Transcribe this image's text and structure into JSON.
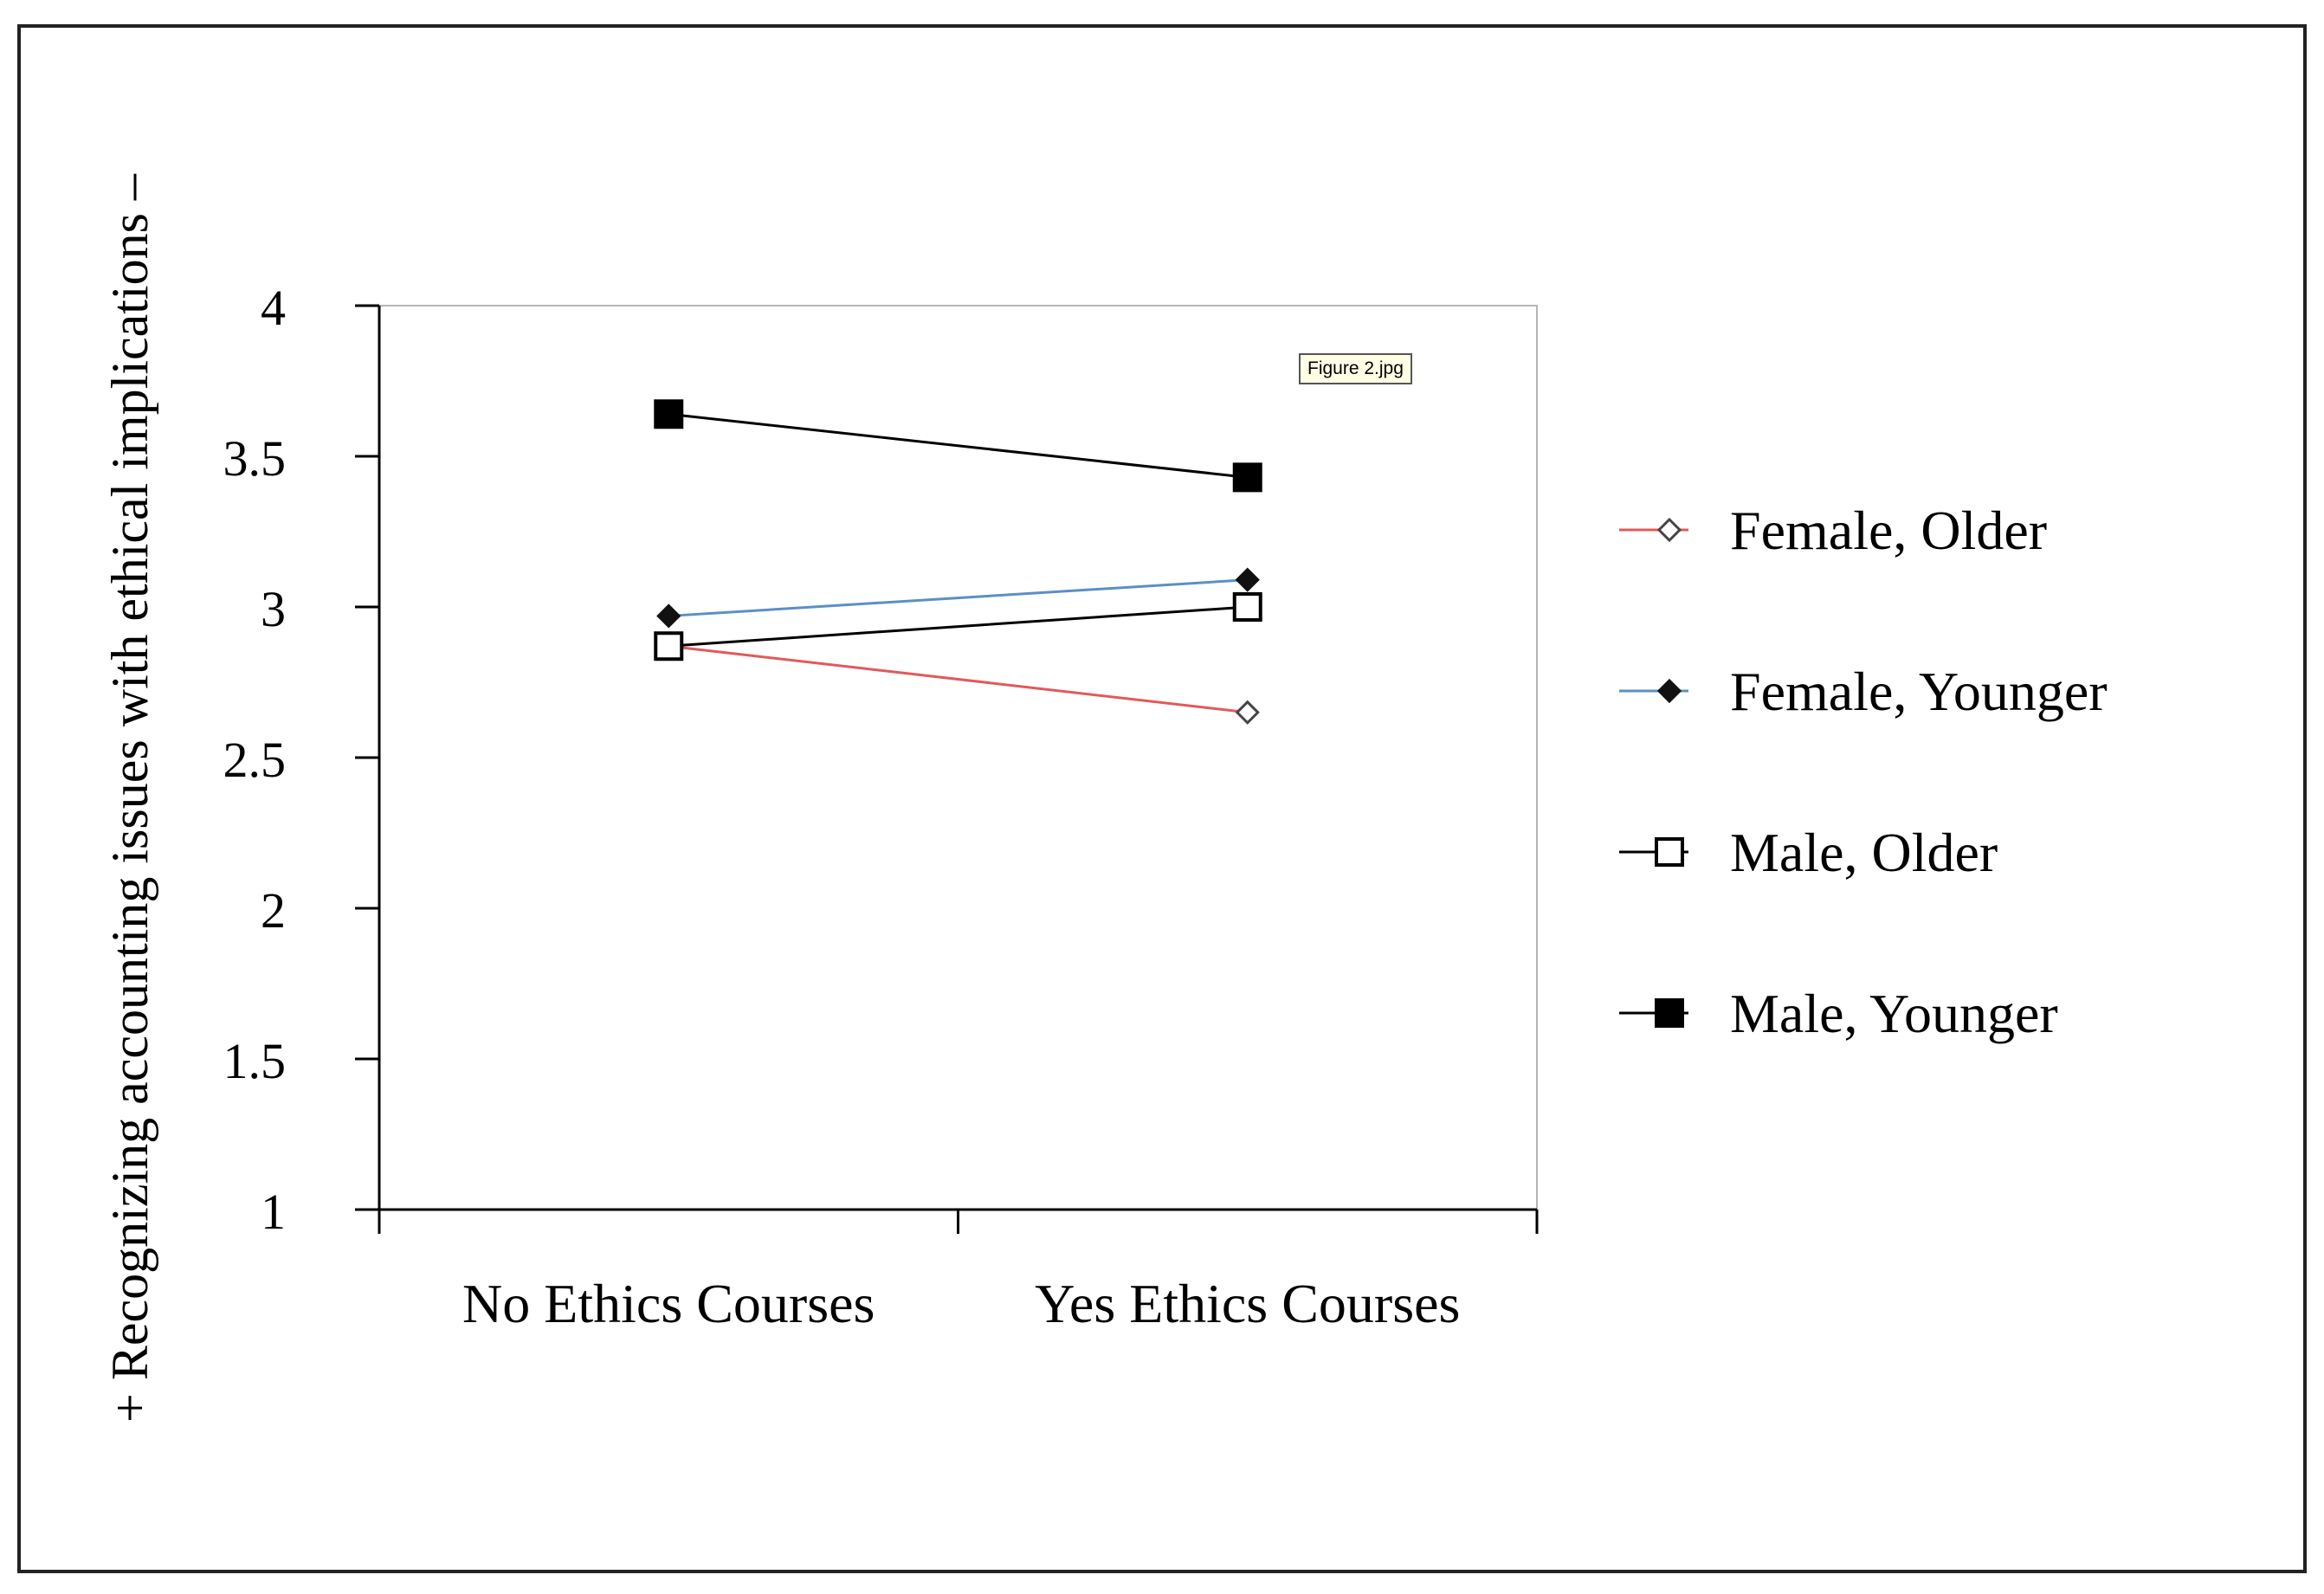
{
  "tooltip": "Figure 2.jpg",
  "chart_data": {
    "type": "line",
    "title": "",
    "xlabel": "",
    "ylabel": "+ Recognizing accounting issues with ethical implications –",
    "ylim": [
      1,
      4
    ],
    "yticks": [
      "1",
      "1.5",
      "2",
      "2.5",
      "3",
      "3.5",
      "4"
    ],
    "categories": [
      "No Ethics Courses",
      "Yes Ethics Courses"
    ],
    "grid": false,
    "legend_position": "right",
    "series": [
      {
        "name": "Female, Older",
        "values": [
          2.87,
          2.65
        ],
        "color": "#e05a5a",
        "marker": "open-diamond"
      },
      {
        "name": "Female, Younger",
        "values": [
          2.97,
          3.09
        ],
        "color": "#5b8fc7",
        "marker": "filled-diamond"
      },
      {
        "name": "Male, Older",
        "values": [
          2.87,
          3.0
        ],
        "color": "#000000",
        "marker": "open-square"
      },
      {
        "name": "Male, Younger",
        "values": [
          3.64,
          3.43
        ],
        "color": "#000000",
        "marker": "filled-square"
      }
    ]
  }
}
